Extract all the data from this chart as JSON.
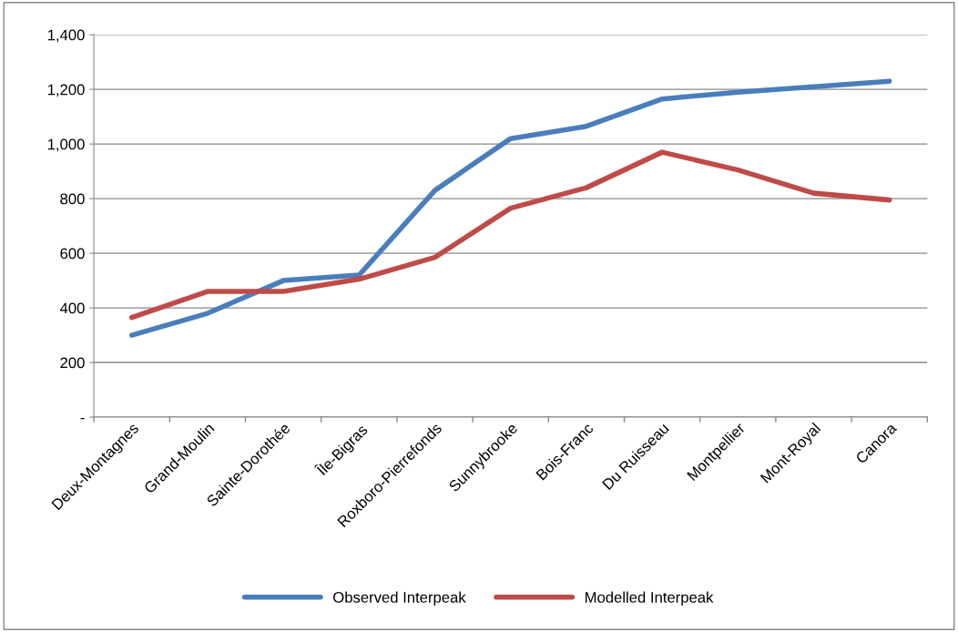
{
  "chart_data": {
    "type": "line",
    "categories": [
      "Deux-Montagnes",
      "Grand-Moulin",
      "Sainte-Dorothée",
      "Île-Bigras",
      "Roxboro-Pierrefonds",
      "Sunnybrooke",
      "Bois-Franc",
      "Du Ruisseau",
      "Montpellier",
      "Mont-Royal",
      "Canora"
    ],
    "series": [
      {
        "name": "Observed Interpeak",
        "color": "#4a7ebb",
        "values": [
          300,
          380,
          500,
          520,
          830,
          1020,
          1065,
          1165,
          1190,
          1210,
          1230
        ]
      },
      {
        "name": "Modelled Interpeak",
        "color": "#be4b48",
        "values": [
          365,
          460,
          460,
          505,
          585,
          765,
          840,
          970,
          905,
          820,
          795
        ]
      }
    ],
    "ylim": [
      0,
      1400
    ],
    "yticks": [
      {
        "value": 0,
        "label": "-"
      },
      {
        "value": 200,
        "label": "200"
      },
      {
        "value": 400,
        "label": "400"
      },
      {
        "value": 600,
        "label": "600"
      },
      {
        "value": 800,
        "label": "800"
      },
      {
        "value": 1000,
        "label": "1,000"
      },
      {
        "value": 1200,
        "label": "1,200"
      },
      {
        "value": 1400,
        "label": "1,400"
      }
    ],
    "grid": "y",
    "legend": "bottom",
    "marker": "none",
    "line_style": "solid"
  }
}
